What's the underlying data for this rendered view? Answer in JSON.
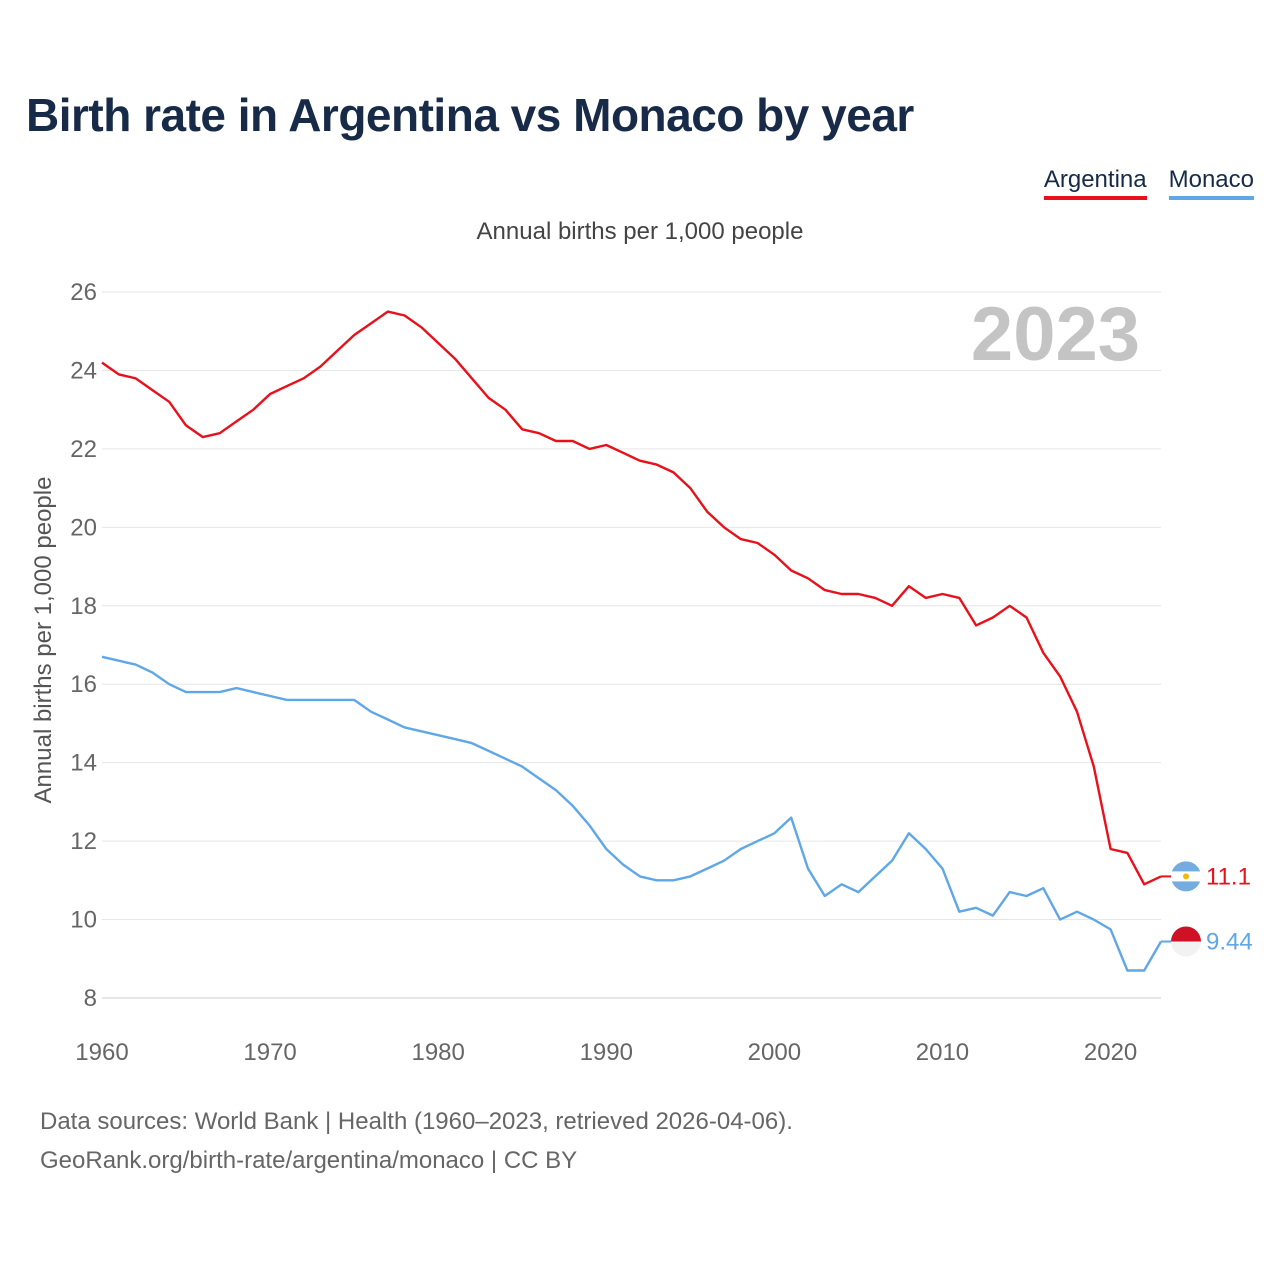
{
  "header": {
    "title": "Birth rate in Argentina vs Monaco by year",
    "subtitle": "Annual births per 1,000 people"
  },
  "legend": [
    {
      "label": "Argentina",
      "color": "#e8111b"
    },
    {
      "label": "Monaco",
      "color": "#5fa7e6"
    }
  ],
  "year_label": "2023",
  "footer": {
    "line1": "Data sources: World Bank | Health (1960–2023, retrieved 2026-04-06).",
    "line2": "GeoRank.org/birth-rate/argentina/monaco | CC BY"
  },
  "chart_data": {
    "type": "line",
    "title": "Birth rate in Argentina vs Monaco by year",
    "xlabel": "",
    "ylabel": "Annual births per 1,000 people",
    "xlim": [
      1960,
      2023
    ],
    "ylim": [
      8,
      26
    ],
    "xticks": [
      1960,
      1970,
      1980,
      1990,
      2000,
      2010,
      2020
    ],
    "yticks": [
      8,
      10,
      12,
      14,
      16,
      18,
      20,
      22,
      24,
      26
    ],
    "grid": true,
    "x": [
      1960,
      1961,
      1962,
      1963,
      1964,
      1965,
      1966,
      1967,
      1968,
      1969,
      1970,
      1971,
      1972,
      1973,
      1974,
      1975,
      1976,
      1977,
      1978,
      1979,
      1980,
      1981,
      1982,
      1983,
      1984,
      1985,
      1986,
      1987,
      1988,
      1989,
      1990,
      1991,
      1992,
      1993,
      1994,
      1995,
      1996,
      1997,
      1998,
      1999,
      2000,
      2001,
      2002,
      2003,
      2004,
      2005,
      2006,
      2007,
      2008,
      2009,
      2010,
      2011,
      2012,
      2013,
      2014,
      2015,
      2016,
      2017,
      2018,
      2019,
      2020,
      2021,
      2022,
      2023
    ],
    "series": [
      {
        "name": "Argentina",
        "color": "#e8111b",
        "end_label": "11.1",
        "values": [
          24.2,
          23.9,
          23.8,
          23.5,
          23.2,
          22.6,
          22.3,
          22.4,
          22.7,
          23.0,
          23.4,
          23.6,
          23.8,
          24.1,
          24.5,
          24.9,
          25.2,
          25.5,
          25.4,
          25.1,
          24.7,
          24.3,
          23.8,
          23.3,
          23.0,
          22.5,
          22.4,
          22.2,
          22.2,
          22.0,
          22.1,
          21.9,
          21.7,
          21.6,
          21.4,
          21.0,
          20.4,
          20.0,
          19.7,
          19.6,
          19.3,
          18.9,
          18.7,
          18.4,
          18.3,
          18.3,
          18.2,
          18.0,
          18.5,
          18.2,
          18.3,
          18.2,
          17.5,
          17.7,
          18.0,
          17.7,
          16.8,
          16.2,
          15.3,
          13.9,
          11.8,
          11.7,
          10.9,
          11.1
        ]
      },
      {
        "name": "Monaco",
        "color": "#5fa7e6",
        "end_label": "9.44",
        "values": [
          16.7,
          16.6,
          16.5,
          16.3,
          16.0,
          15.8,
          15.8,
          15.8,
          15.9,
          15.8,
          15.7,
          15.6,
          15.6,
          15.6,
          15.6,
          15.6,
          15.3,
          15.1,
          14.9,
          14.8,
          14.7,
          14.6,
          14.5,
          14.3,
          14.1,
          13.9,
          13.6,
          13.3,
          12.9,
          12.4,
          11.8,
          11.4,
          11.1,
          11.0,
          11.0,
          11.1,
          11.3,
          11.5,
          11.8,
          12.0,
          12.2,
          12.6,
          11.3,
          10.6,
          10.9,
          10.7,
          11.1,
          11.5,
          12.2,
          11.8,
          11.3,
          10.2,
          10.3,
          10.1,
          10.7,
          10.6,
          10.8,
          10.0,
          10.2,
          10.0,
          9.75,
          8.7,
          8.7,
          9.44
        ]
      }
    ]
  }
}
